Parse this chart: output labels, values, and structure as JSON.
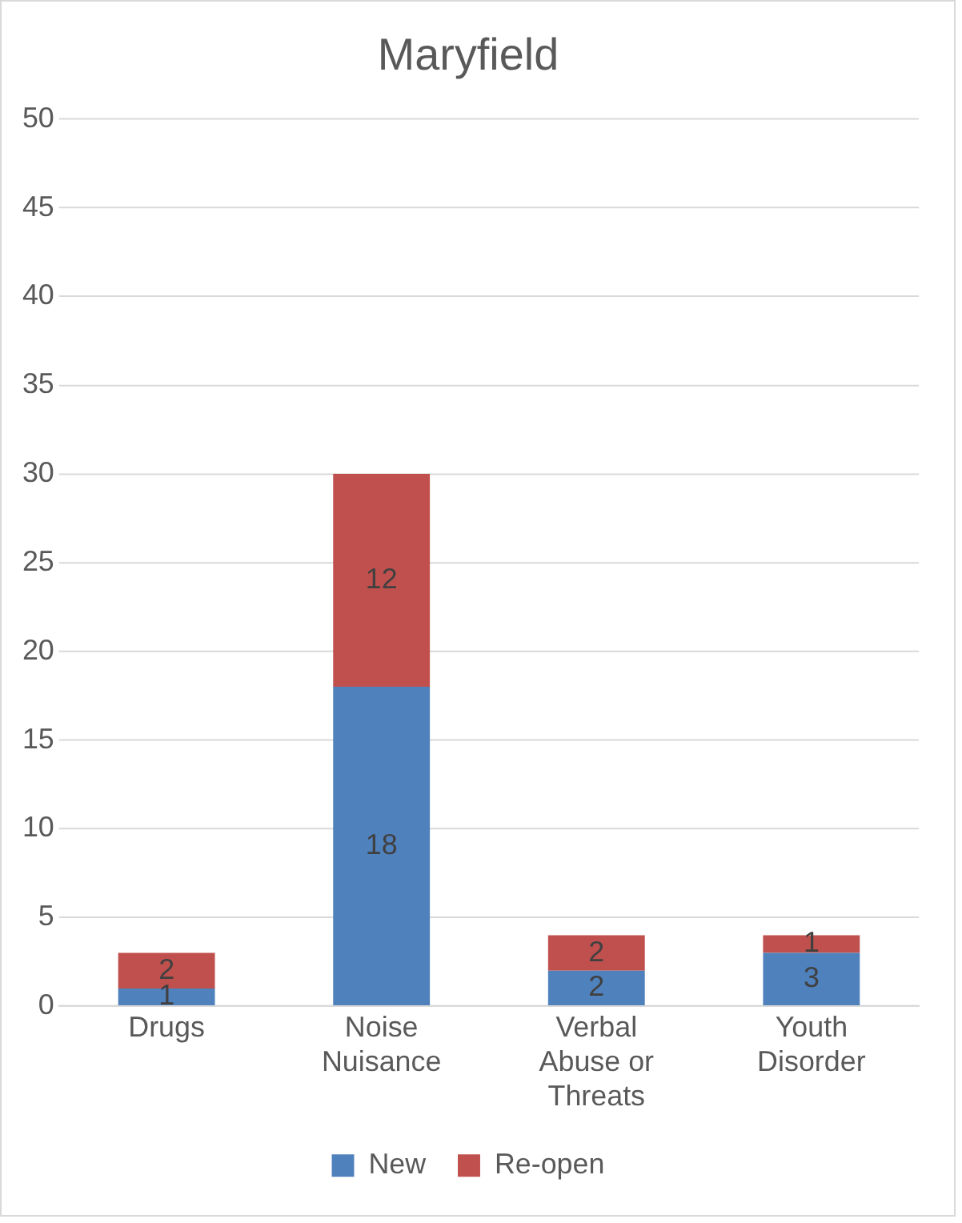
{
  "chart_data": {
    "type": "bar",
    "title": "Maryfield",
    "categories": [
      "Drugs",
      "Noise Nuisance",
      "Verbal Abuse or Threats",
      "Youth Disorder"
    ],
    "series": [
      {
        "name": "New",
        "color": "#4f81bd",
        "values": [
          1,
          18,
          2,
          3
        ]
      },
      {
        "name": "Re-open",
        "color": "#c0504d",
        "values": [
          2,
          12,
          2,
          1
        ]
      }
    ],
    "stacked": true,
    "ylim": [
      0,
      50
    ],
    "yticks": [
      0,
      5,
      10,
      15,
      20,
      25,
      30,
      35,
      40,
      45,
      50
    ],
    "grid": "y",
    "legend": "bottom",
    "data_labels": true
  }
}
